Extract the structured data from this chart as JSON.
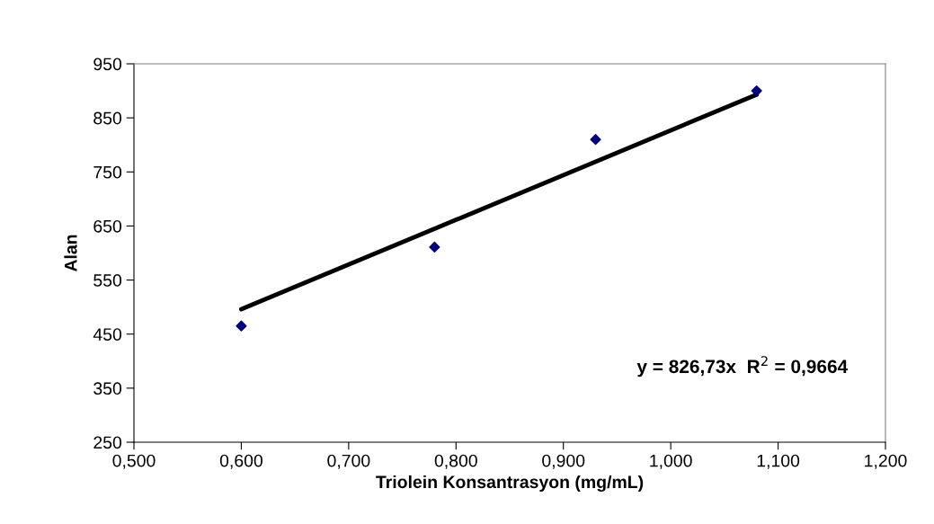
{
  "chart_data": {
    "type": "scatter",
    "xlabel": "Triolein Konsantrasyon (mg/mL)",
    "ylabel": "Alan",
    "series": [
      {
        "color": "#000080",
        "marker": "diamond",
        "x": [
          0.6,
          0.78,
          0.93,
          1.08
        ],
        "values": [
          465,
          611,
          810,
          900
        ]
      },
      {
        "type": "line",
        "color": "#000000",
        "marker": "none",
        "line_style": "solid",
        "x": [
          0.6,
          1.08
        ],
        "values": [
          496,
          893
        ]
      }
    ],
    "annotations": [
      "y = 826,73x  R$^{2}$ = 0,9664"
    ],
    "xlim": [
      0.5,
      1.2
    ],
    "xticks": [
      {
        "value": 0.5,
        "label": "0,500"
      },
      {
        "value": 0.6,
        "label": "0,600"
      },
      {
        "value": 0.7,
        "label": "0,700"
      },
      {
        "value": 0.8,
        "label": "0,800"
      },
      {
        "value": 0.9,
        "label": "0,900"
      },
      {
        "value": 1.0,
        "label": "1,000"
      },
      {
        "value": 1.1,
        "label": "1,100"
      },
      {
        "value": 1.2,
        "label": "1,200"
      }
    ],
    "ylim": [
      250,
      950
    ],
    "yticks": [
      250,
      350,
      450,
      550,
      650,
      750,
      850,
      950
    ],
    "grid": false,
    "legend": false
  }
}
